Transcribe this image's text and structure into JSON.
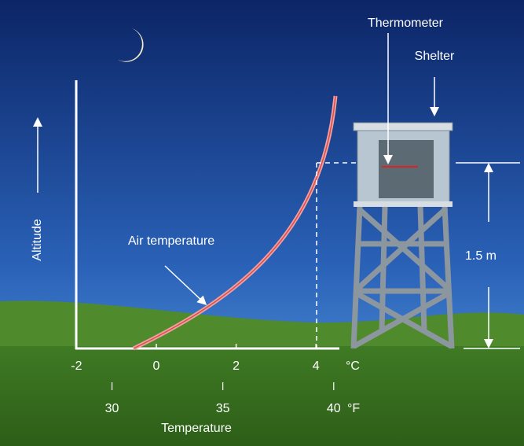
{
  "labels": {
    "thermometer": "Thermometer",
    "shelter": "Shelter",
    "altitude": "Altitude",
    "air_temperature": "Air temperature",
    "height": "1.5 m",
    "x_title": "Temperature"
  },
  "celsius_axis": {
    "unit": "°C",
    "ticks": [
      -2,
      0,
      2,
      4
    ]
  },
  "fahrenheit_axis": {
    "unit": "°F",
    "ticks": [
      30,
      35,
      40
    ]
  }
}
